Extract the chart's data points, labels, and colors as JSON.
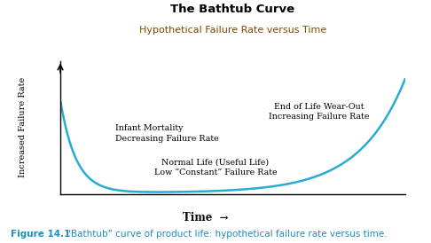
{
  "title_line1": "The Bathtub Curve",
  "title_line2": "Hypothetical Failure Rate versus Time",
  "title_line1_color": "#000000",
  "title_line2_color": "#8B4500",
  "curve_color": "#29ABD4",
  "curve_linewidth": 1.8,
  "ylabel": "Increased Failure Rate",
  "xlabel": "Time",
  "ylabel_color": "#000000",
  "xlabel_color": "#000000",
  "annotation_infant_line1": "Infant Mortality",
  "annotation_infant_line2": "Decreasing Failure Rate",
  "annotation_normal_line1": "Normal Life (Useful Life)",
  "annotation_normal_line2": "Low “Constant” Failure Rate",
  "annotation_wearout_line1": "End of Life Wear-Out",
  "annotation_wearout_line2": "Increasing Failure Rate",
  "annotation_color": "#000000",
  "figure_caption_prefix": "Figure 14.1",
  "figure_caption_text": "“Bathtub” curve of product life: hypothetical failure rate versus time.",
  "figure_caption_color": "#1B8FC4",
  "background_color": "#FFFFFF"
}
